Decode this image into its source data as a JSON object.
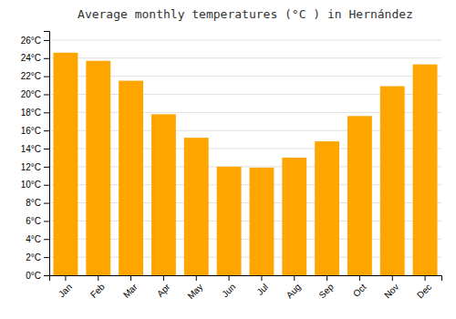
{
  "chart_data": {
    "type": "bar",
    "title": "Average monthly temperatures (°C ) in Hernández",
    "categories": [
      "Jan",
      "Feb",
      "Mar",
      "Apr",
      "May",
      "Jun",
      "Jul",
      "Aug",
      "Sep",
      "Oct",
      "Nov",
      "Dec"
    ],
    "values": [
      24.6,
      23.7,
      21.5,
      17.8,
      15.2,
      12.0,
      11.9,
      13.0,
      14.8,
      17.6,
      20.9,
      23.3
    ],
    "color": "#FFA500",
    "ylim": [
      0,
      27
    ],
    "yticks": [
      {
        "value": 0,
        "label": "0°C"
      },
      {
        "value": 2,
        "label": "2°C"
      },
      {
        "value": 4,
        "label": "4°C"
      },
      {
        "value": 6,
        "label": "6°C"
      },
      {
        "value": 8,
        "label": "8°C"
      },
      {
        "value": 10,
        "label": "10°C"
      },
      {
        "value": 12,
        "label": "12°C"
      },
      {
        "value": 14,
        "label": "14°C"
      },
      {
        "value": 16,
        "label": "16°C"
      },
      {
        "value": 18,
        "label": "18°C"
      },
      {
        "value": 20,
        "label": "20°C"
      },
      {
        "value": 22,
        "label": "22°C"
      },
      {
        "value": 24,
        "label": "24°C"
      },
      {
        "value": 26,
        "label": "26°C"
      }
    ],
    "grid": true
  }
}
